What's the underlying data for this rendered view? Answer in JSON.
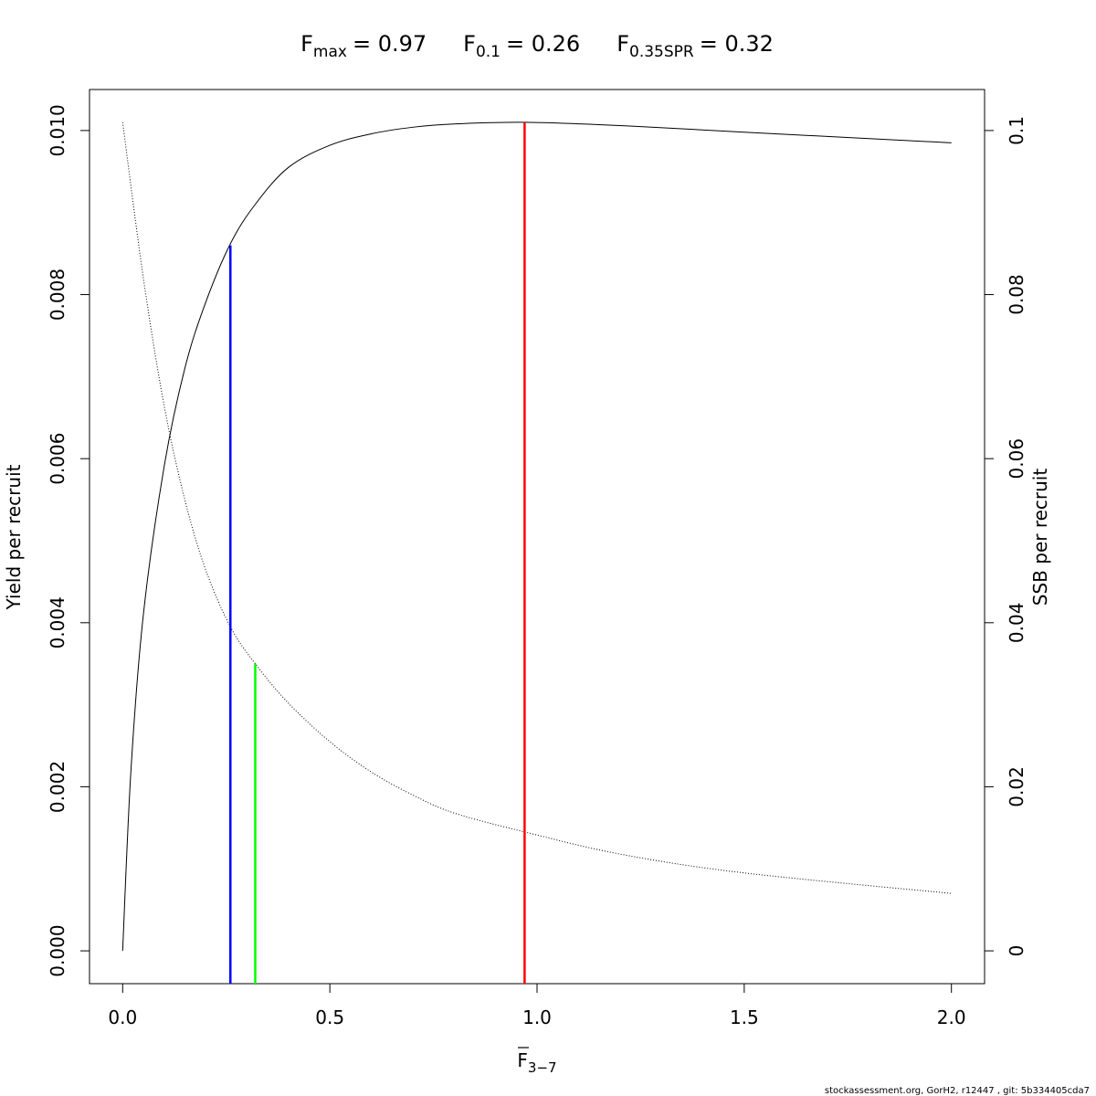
{
  "title": {
    "fmax": {
      "base": "F",
      "sub": "max",
      "value": "= 0.97"
    },
    "f01": {
      "base": "F",
      "sub": "0.1",
      "value": "= 0.26"
    },
    "f35": {
      "base": "F",
      "sub": "0.35SPR",
      "value": "= 0.32"
    }
  },
  "footer": "stockassessment.org, GorH2, r12447 , git: 5b334405cda7",
  "chart_data": {
    "type": "line",
    "xlabel": {
      "base": "F",
      "sub": "3−7",
      "overline": true
    },
    "ylabel_left": "Yield per recruit",
    "ylabel_right": "SSB per recruit",
    "xlim": [
      -0.08,
      2.08
    ],
    "ylim_left": [
      -0.0004,
      0.0105
    ],
    "ylim_right": [
      -0.004,
      0.105
    ],
    "x_ticks": [
      0,
      0.5,
      1,
      1.5,
      2
    ],
    "x_tick_labels": [
      "0.0",
      "0.5",
      "1.0",
      "1.5",
      "2.0"
    ],
    "y_left_ticks": [
      0,
      0.002,
      0.004,
      0.006,
      0.008,
      0.01
    ],
    "y_left_tick_labels": [
      "0.000",
      "0.002",
      "0.004",
      "0.006",
      "0.008",
      "0.010"
    ],
    "y_right_ticks": [
      0,
      0.02,
      0.04,
      0.06,
      0.08,
      0.1
    ],
    "y_right_tick_labels": [
      "0",
      "0.02",
      "0.04",
      "0.06",
      "0.08",
      "0.1"
    ],
    "grid": false,
    "series": [
      {
        "axis": "left",
        "style": "solid",
        "color": "#000000",
        "x": [
          0,
          0.02,
          0.05,
          0.1,
          0.15,
          0.2,
          0.26,
          0.32,
          0.4,
          0.5,
          0.6,
          0.7,
          0.8,
          0.97,
          1.2,
          1.5,
          2.0
        ],
        "y": [
          0.0,
          0.0022,
          0.0041,
          0.0059,
          0.0071,
          0.0079,
          0.00862,
          0.0091,
          0.00955,
          0.00982,
          0.00996,
          0.01004,
          0.01008,
          0.0101,
          0.01006,
          0.00998,
          0.00985
        ]
      },
      {
        "axis": "right",
        "style": "dotted",
        "color": "#000000",
        "x": [
          0,
          0.05,
          0.1,
          0.15,
          0.2,
          0.26,
          0.32,
          0.4,
          0.5,
          0.6,
          0.7,
          0.8,
          0.97,
          1.2,
          1.5,
          2.0
        ],
        "y": [
          0.101,
          0.082,
          0.0665,
          0.055,
          0.0465,
          0.0395,
          0.035,
          0.0302,
          0.0255,
          0.0218,
          0.019,
          0.0168,
          0.0145,
          0.0118,
          0.0095,
          0.007
        ]
      }
    ],
    "reference_lines": [
      {
        "x": 0.26,
        "y_top": 0.0086,
        "color": "#0000ff"
      },
      {
        "x": 0.32,
        "y_top": 0.0035,
        "color": "#00ff00"
      },
      {
        "x": 0.97,
        "y_top": 0.0101,
        "color": "#ff0000"
      }
    ]
  }
}
